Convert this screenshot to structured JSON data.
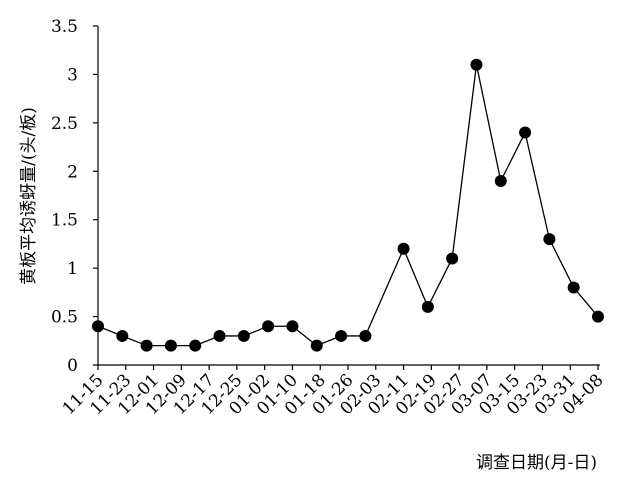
{
  "chart_data": {
    "type": "line",
    "y_label": "黄板平均诱蚜量/(头/板)",
    "x_label": "调查日期(月-日)",
    "x": [
      "11-15",
      "11-22",
      "11-29",
      "12-06",
      "12-13",
      "12-20",
      "12-27",
      "01-03",
      "01-10",
      "01-17",
      "01-24",
      "01-31",
      "02-11",
      "02-18",
      "02-25",
      "03-04",
      "03-11",
      "03-18",
      "03-25",
      "04-01",
      "04-08"
    ],
    "series": [
      {
        "color": "#000000",
        "values": [
          0.4,
          0.3,
          0.2,
          0.2,
          0.2,
          0.3,
          0.3,
          0.4,
          0.4,
          0.2,
          0.3,
          0.3,
          1.2,
          0.6,
          1.1,
          3.1,
          1.9,
          2.4,
          1.3,
          0.8,
          0.5
        ]
      }
    ],
    "xlim": [
      "11-15",
      "04-08"
    ],
    "xticks": [
      "11-15",
      "11-23",
      "12-01",
      "12-09",
      "12-17",
      "12-25",
      "01-02",
      "01-10",
      "01-18",
      "01-26",
      "02-03",
      "02-11",
      "02-19",
      "02-27",
      "03-07",
      "03-15",
      "03-23",
      "03-31",
      "04-08"
    ],
    "ylim": [
      0,
      3.5
    ],
    "yticks": [
      0,
      0.5,
      1,
      {
        "value": 1.5,
        "label": "1.5"
      },
      2,
      {
        "value": 2.5,
        "label": "2.5"
      },
      3,
      {
        "value": 3.5,
        "label": "3.5"
      }
    ]
  }
}
